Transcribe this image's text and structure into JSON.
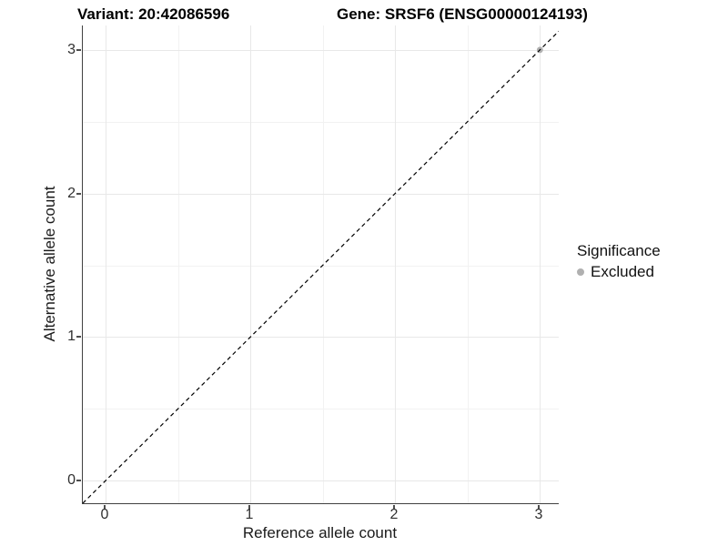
{
  "figure": {
    "titles": {
      "variant": "Variant: 20:42086596",
      "gene": "Gene: SRSF6 (ENSG00000124193)"
    }
  },
  "axes": {
    "x": {
      "label": "Reference allele count",
      "ticks": [
        "0",
        "1",
        "2",
        "3"
      ]
    },
    "y": {
      "label": "Alternative allele count",
      "ticks": [
        "0",
        "1",
        "2",
        "3"
      ]
    }
  },
  "legend": {
    "title": "Significance",
    "items": [
      {
        "label": "Excluded",
        "color": "#b0b0b0",
        "shape": "circle"
      }
    ]
  },
  "colors": {
    "background": "#ffffff",
    "axis_line": "#404040",
    "grid_major": "#e8e8e8",
    "grid_minor": "#f2f2f2",
    "tick_label": "#303030",
    "title_text": "#000000",
    "identity_line": "#000000",
    "point_excluded": "#b0b0b0"
  },
  "chart_data": {
    "type": "scatter",
    "title": "Variant: 20:42086596 | Gene: SRSF6 (ENSG00000124193)",
    "xlabel": "Reference allele count",
    "ylabel": "Alternative allele count",
    "xlim": [
      -0.16,
      3.13
    ],
    "ylim": [
      -0.16,
      3.17
    ],
    "x_ticks": [
      0,
      1,
      2,
      3
    ],
    "y_ticks": [
      0,
      1,
      2,
      3
    ],
    "grid": "major and minor gridlines, light gray on white",
    "legend_position": "right-center",
    "series": [
      {
        "name": "Excluded",
        "color": "#b0b0b0",
        "points": [
          {
            "x": 3,
            "y": 3
          }
        ]
      }
    ],
    "reference_line": {
      "style": "dashed",
      "slope": 1,
      "intercept": 0,
      "color": "#000000"
    }
  }
}
